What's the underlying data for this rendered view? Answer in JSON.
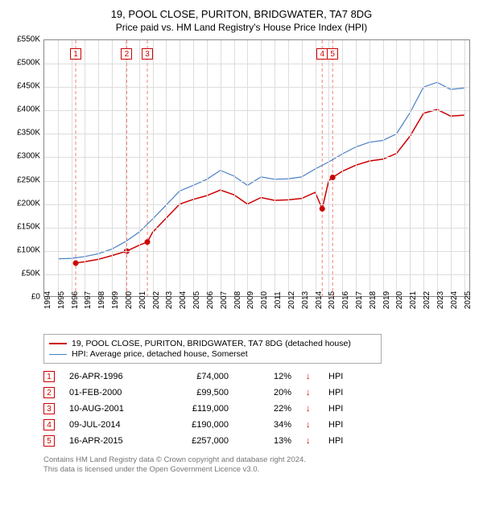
{
  "title": {
    "line1": "19, POOL CLOSE, PURITON, BRIDGWATER, TA7 8DG",
    "line2": "Price paid vs. HM Land Registry's House Price Index (HPI)"
  },
  "chart": {
    "type": "line",
    "background_color": "#ffffff",
    "grid_color": "#dddddd",
    "border_color": "#888888",
    "x": {
      "min": 1994,
      "max": 2025.5,
      "ticks": [
        1994,
        1995,
        1996,
        1997,
        1998,
        1999,
        2000,
        2001,
        2002,
        2003,
        2004,
        2005,
        2006,
        2007,
        2008,
        2009,
        2010,
        2011,
        2012,
        2013,
        2014,
        2015,
        2016,
        2017,
        2018,
        2019,
        2020,
        2021,
        2022,
        2023,
        2024,
        2025
      ],
      "label_fontsize": 10,
      "label_rotation": -90
    },
    "y": {
      "min": 0,
      "max": 550000,
      "prefix": "£",
      "suffix": "K",
      "ticks": [
        0,
        50000,
        100000,
        150000,
        200000,
        250000,
        300000,
        350000,
        400000,
        450000,
        500000,
        550000
      ],
      "label_fontsize": 10
    },
    "series": [
      {
        "id": "hpi",
        "label": "HPI: Average price, detached house, Somerset",
        "color": "#4a7fc4",
        "line_width": 1.2,
        "points": [
          [
            1995.0,
            83000
          ],
          [
            1996.0,
            84000
          ],
          [
            1997.0,
            88000
          ],
          [
            1998.0,
            94000
          ],
          [
            1999.0,
            104000
          ],
          [
            2000.0,
            120000
          ],
          [
            2001.0,
            140000
          ],
          [
            2002.0,
            168000
          ],
          [
            2003.0,
            198000
          ],
          [
            2004.0,
            228000
          ],
          [
            2005.0,
            240000
          ],
          [
            2006.0,
            253000
          ],
          [
            2007.0,
            272000
          ],
          [
            2008.0,
            260000
          ],
          [
            2009.0,
            240000
          ],
          [
            2010.0,
            258000
          ],
          [
            2011.0,
            253000
          ],
          [
            2012.0,
            254000
          ],
          [
            2013.0,
            258000
          ],
          [
            2014.0,
            275000
          ],
          [
            2015.0,
            290000
          ],
          [
            2016.0,
            307000
          ],
          [
            2017.0,
            322000
          ],
          [
            2018.0,
            332000
          ],
          [
            2019.0,
            336000
          ],
          [
            2020.0,
            350000
          ],
          [
            2021.0,
            395000
          ],
          [
            2022.0,
            450000
          ],
          [
            2023.0,
            460000
          ],
          [
            2024.0,
            445000
          ],
          [
            2025.0,
            448000
          ]
        ]
      },
      {
        "id": "property",
        "label": "19, POOL CLOSE, PURITON, BRIDGWATER, TA7 8DG (detached house)",
        "color": "#cc0000",
        "line_width": 1.5,
        "points": [
          [
            1996.32,
            74000
          ],
          [
            1997.0,
            77000
          ],
          [
            1998.0,
            82000
          ],
          [
            1999.0,
            90000
          ],
          [
            2000.09,
            99500
          ],
          [
            2001.0,
            112000
          ],
          [
            2001.61,
            119000
          ],
          [
            2002.0,
            140000
          ],
          [
            2003.0,
            170000
          ],
          [
            2004.0,
            200000
          ],
          [
            2005.0,
            210000
          ],
          [
            2006.0,
            218000
          ],
          [
            2007.0,
            230000
          ],
          [
            2008.0,
            220000
          ],
          [
            2009.0,
            200000
          ],
          [
            2010.0,
            214000
          ],
          [
            2011.0,
            208000
          ],
          [
            2012.0,
            209000
          ],
          [
            2013.0,
            212000
          ],
          [
            2014.0,
            225000
          ],
          [
            2014.52,
            190000
          ],
          [
            2015.0,
            250000
          ],
          [
            2015.29,
            257000
          ],
          [
            2016.0,
            270000
          ],
          [
            2017.0,
            283000
          ],
          [
            2018.0,
            292000
          ],
          [
            2019.0,
            296000
          ],
          [
            2020.0,
            308000
          ],
          [
            2021.0,
            345000
          ],
          [
            2022.0,
            394000
          ],
          [
            2023.0,
            402000
          ],
          [
            2024.0,
            388000
          ],
          [
            2025.0,
            390000
          ]
        ],
        "markers": [
          {
            "n": 1,
            "x": 1996.32,
            "y": 74000
          },
          {
            "n": 2,
            "x": 2000.09,
            "y": 99500
          },
          {
            "n": 3,
            "x": 2001.61,
            "y": 119000
          },
          {
            "n": 4,
            "x": 2014.52,
            "y": 190000
          },
          {
            "n": 5,
            "x": 2015.29,
            "y": 257000
          }
        ],
        "marker_fill": "#cc0000",
        "marker_radius": 3.5
      }
    ],
    "reference_lines": {
      "color": "#e74c3c",
      "dash": "4,3",
      "boxes_top_offset": 10,
      "box_border": "#cc0000",
      "box_text_color": "#cc0000",
      "box_size": 14
    }
  },
  "legend": {
    "border_color": "#aaaaaa",
    "fontsize": 10.5,
    "items": [
      {
        "color": "#cc0000",
        "width": 2,
        "label": "19, POOL CLOSE, PURITON, BRIDGWATER, TA7 8DG (detached house)"
      },
      {
        "color": "#4a7fc4",
        "width": 1.2,
        "label": "HPI: Average price, detached house, Somerset"
      }
    ]
  },
  "sales": {
    "marker_border": "#cc0000",
    "arrow_glyph": "↓",
    "arrow_color": "#cc0000",
    "hpi_label": "HPI",
    "rows": [
      {
        "n": "1",
        "date": "26-APR-1996",
        "price": "£74,000",
        "pct": "12%"
      },
      {
        "n": "2",
        "date": "01-FEB-2000",
        "price": "£99,500",
        "pct": "20%"
      },
      {
        "n": "3",
        "date": "10-AUG-2001",
        "price": "£119,000",
        "pct": "22%"
      },
      {
        "n": "4",
        "date": "09-JUL-2014",
        "price": "£190,000",
        "pct": "34%"
      },
      {
        "n": "5",
        "date": "16-APR-2015",
        "price": "£257,000",
        "pct": "13%"
      }
    ]
  },
  "footer": {
    "line1": "Contains HM Land Registry data © Crown copyright and database right 2024.",
    "line2": "This data is licensed under the Open Government Licence v3.0."
  }
}
